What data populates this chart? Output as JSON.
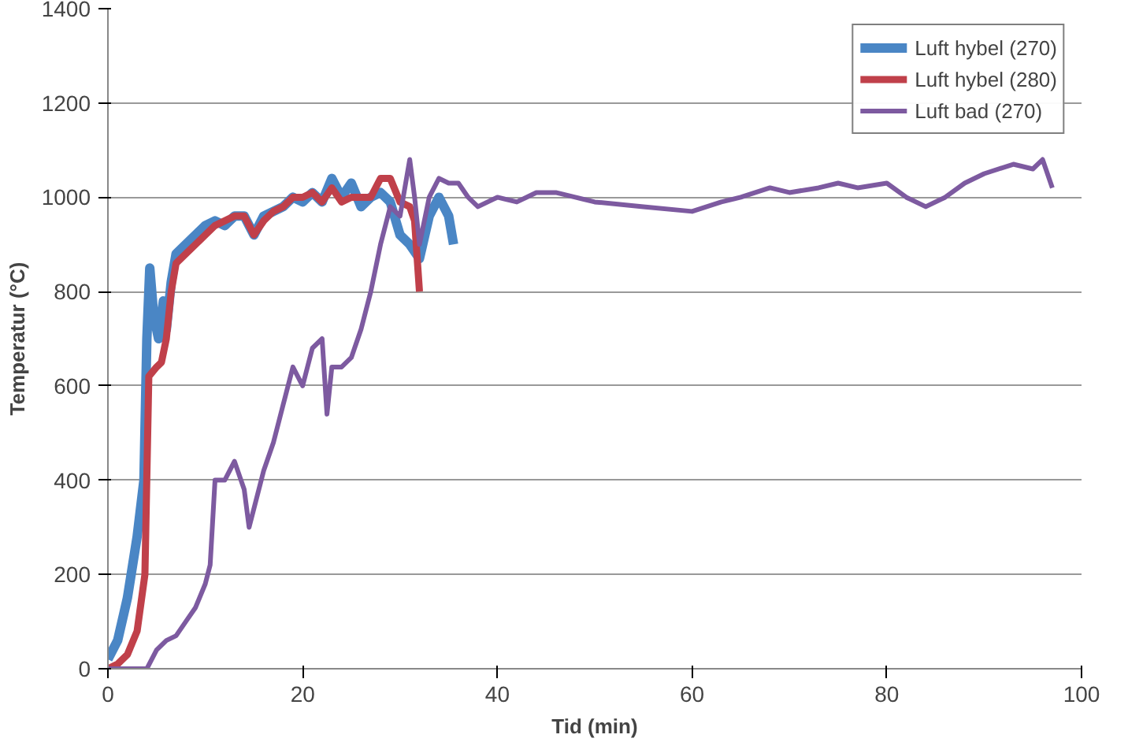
{
  "chart_data": {
    "type": "line",
    "xlabel": "Tid (min)",
    "ylabel": "Temperatur (°C)",
    "xlim": [
      0,
      100
    ],
    "ylim": [
      0,
      1400
    ],
    "xticks": [
      0,
      20,
      40,
      60,
      80,
      100
    ],
    "yticks": [
      0,
      200,
      400,
      600,
      800,
      1000,
      1200,
      1400
    ],
    "grid": "y",
    "legend": "top right",
    "marker": "none",
    "line_style": "solid",
    "series": [
      {
        "name": "Luft hybel (270)",
        "color": "#4a86c5",
        "x": [
          0,
          1,
          2,
          3,
          3.7,
          4,
          4.3,
          4.7,
          5.2,
          5.7,
          6,
          6.5,
          7,
          8,
          9,
          10,
          11,
          12,
          13,
          14,
          15,
          16,
          17,
          18,
          19,
          20,
          21,
          22,
          23,
          24,
          25,
          26,
          27,
          28,
          29,
          30,
          31,
          32,
          33,
          34,
          35,
          35.5
        ],
        "values": [
          20,
          60,
          150,
          280,
          400,
          700,
          850,
          750,
          700,
          780,
          720,
          820,
          880,
          900,
          920,
          940,
          950,
          940,
          960,
          960,
          920,
          960,
          970,
          980,
          1000,
          990,
          1010,
          990,
          1040,
          1000,
          1030,
          980,
          1000,
          1010,
          990,
          920,
          900,
          870,
          960,
          1000,
          960,
          900
        ]
      },
      {
        "name": "Luft hybel (280)",
        "color": "#c0404a",
        "x": [
          0,
          1,
          2,
          3,
          3.8,
          4.2,
          5,
          5.5,
          6,
          6.5,
          7,
          8,
          9,
          10,
          11,
          12,
          13,
          14,
          15,
          16,
          17,
          18,
          19,
          20,
          21,
          22,
          23,
          24,
          25,
          26,
          27,
          28,
          29,
          30,
          31,
          31.5,
          32
        ],
        "values": [
          0,
          10,
          30,
          80,
          200,
          620,
          640,
          650,
          700,
          800,
          860,
          880,
          900,
          920,
          940,
          950,
          960,
          960,
          920,
          950,
          970,
          980,
          1000,
          1000,
          1010,
          990,
          1020,
          990,
          1000,
          1000,
          1000,
          1040,
          1040,
          990,
          980,
          950,
          800
        ]
      },
      {
        "name": "Luft bad (270)",
        "color": "#7d5aa0",
        "x": [
          0,
          4,
          5,
          6,
          7,
          8,
          9,
          10,
          10.5,
          11,
          12,
          13,
          14,
          14.5,
          15,
          16,
          17,
          18,
          19,
          20,
          21,
          22,
          22.5,
          23,
          24,
          25,
          26,
          27,
          28,
          29,
          30,
          31,
          31.5,
          32,
          33,
          34,
          35,
          36,
          37,
          38,
          40,
          42,
          44,
          46,
          48,
          50,
          55,
          60,
          63,
          65,
          68,
          70,
          73,
          75,
          77,
          80,
          82,
          84,
          86,
          88,
          90,
          93,
          95,
          96,
          97
        ],
        "values": [
          0,
          0,
          40,
          60,
          70,
          100,
          130,
          180,
          220,
          400,
          400,
          440,
          380,
          300,
          340,
          420,
          480,
          560,
          640,
          600,
          680,
          700,
          540,
          640,
          640,
          660,
          720,
          800,
          900,
          980,
          960,
          1080,
          1000,
          900,
          1000,
          1040,
          1030,
          1030,
          1000,
          980,
          1000,
          990,
          1010,
          1010,
          1000,
          990,
          980,
          970,
          990,
          1000,
          1020,
          1010,
          1020,
          1030,
          1020,
          1030,
          1000,
          980,
          1000,
          1030,
          1050,
          1070,
          1060,
          1080,
          1020
        ]
      }
    ]
  }
}
